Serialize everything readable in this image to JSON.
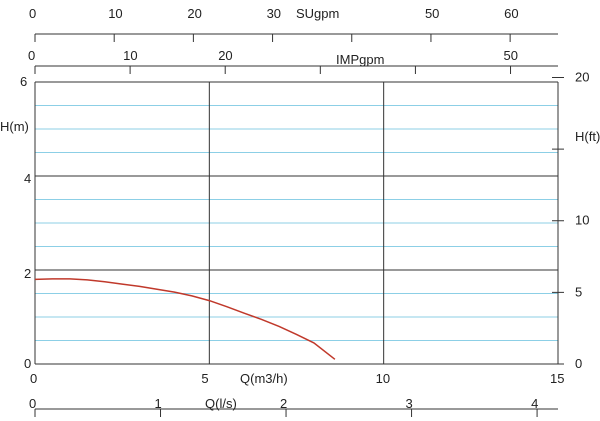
{
  "chart_data": {
    "type": "line",
    "title": "",
    "x_axes": {
      "sugpm": {
        "label": "SUgpm",
        "ticks": [
          "0",
          "10",
          "20",
          "30",
          "50",
          "60"
        ]
      },
      "impgpm": {
        "label": "IMPgpm",
        "ticks": [
          "0",
          "10",
          "20",
          "50"
        ]
      },
      "q_m3h": {
        "label": "Q(m3/h)",
        "ticks": [
          "0",
          "5",
          "10",
          "15"
        ]
      },
      "q_ls": {
        "label": "Q(l/s)",
        "ticks": [
          "0",
          "1",
          "2",
          "3",
          "4"
        ]
      }
    },
    "y_axes": {
      "h_m": {
        "label": "H(m)",
        "ticks": [
          "0",
          "2",
          "4",
          "6"
        ]
      },
      "h_ft": {
        "label": "H(ft)",
        "ticks": [
          "0",
          "5",
          "10",
          "20"
        ]
      }
    },
    "xlim": [
      0,
      15
    ],
    "ylim": [
      0,
      6
    ],
    "grid": true,
    "series": [
      {
        "color": "#c0392b",
        "x": [
          0,
          0.5,
          1,
          1.5,
          2,
          2.5,
          3,
          3.5,
          4,
          4.5,
          5,
          5.5,
          6,
          6.5,
          7,
          7.5,
          8,
          8.6
        ],
        "y": [
          1.8,
          1.81,
          1.81,
          1.79,
          1.75,
          1.7,
          1.65,
          1.59,
          1.53,
          1.45,
          1.35,
          1.22,
          1.08,
          0.95,
          0.8,
          0.63,
          0.45,
          0.1
        ]
      }
    ]
  }
}
